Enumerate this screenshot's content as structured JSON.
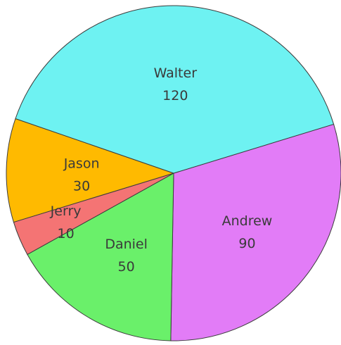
{
  "chart_data": {
    "type": "pie",
    "categories": [
      "Andrew",
      "Daniel",
      "Jerry",
      "Jason",
      "Walter"
    ],
    "values": [
      90,
      50,
      10,
      30,
      120
    ],
    "colors": [
      "#e27cf7",
      "#6af06a",
      "#f47474",
      "#ffba00",
      "#6ef2f2"
    ],
    "title": "",
    "legend": "none"
  }
}
